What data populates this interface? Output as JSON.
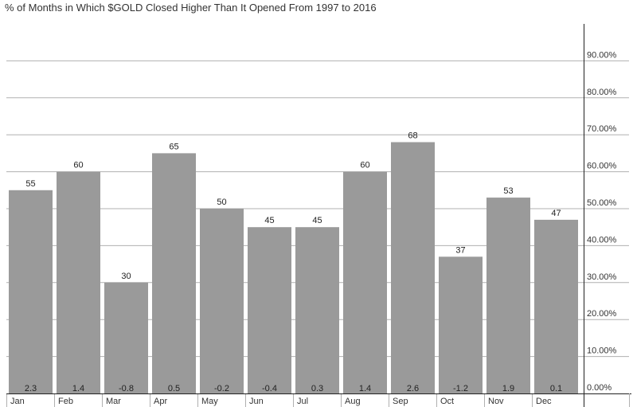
{
  "title": "% of Months in Which $GOLD Closed Higher Than It Opened From 1997 to 2016",
  "colors": {
    "bar": "#9a9a9a",
    "grid": "#b0b0b0",
    "axis": "#222222"
  },
  "chart_data": {
    "type": "bar",
    "title": "% of Months in Which $GOLD Closed Higher Than It Opened From 1997 to 2016",
    "categories": [
      "Jan",
      "Feb",
      "Mar",
      "Apr",
      "May",
      "Jun",
      "Jul",
      "Aug",
      "Sep",
      "Oct",
      "Nov",
      "Dec"
    ],
    "values": [
      55,
      60,
      30,
      65,
      50,
      45,
      45,
      60,
      68,
      37,
      53,
      47
    ],
    "value_labels": [
      "55",
      "60",
      "30",
      "65",
      "50",
      "45",
      "45",
      "60",
      "68",
      "37",
      "53",
      "47"
    ],
    "bottom_labels": [
      "2.3",
      "1.4",
      "-0.8",
      "0.5",
      "-0.2",
      "-0.4",
      "0.3",
      "1.4",
      "2.6",
      "-1.2",
      "1.9",
      "0.1"
    ],
    "ylim": [
      0,
      100
    ],
    "yticks": [
      0,
      10,
      20,
      30,
      40,
      50,
      60,
      70,
      80,
      90
    ],
    "ytick_labels": [
      "0.00%",
      "10.00%",
      "20.00%",
      "30.00%",
      "40.00%",
      "50.00%",
      "60.00%",
      "70.00%",
      "80.00%",
      "90.00%"
    ],
    "grid": true,
    "y_axis_side": "right"
  }
}
